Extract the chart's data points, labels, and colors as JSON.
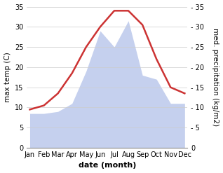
{
  "months": [
    "Jan",
    "Feb",
    "Mar",
    "Apr",
    "May",
    "Jun",
    "Jul",
    "Aug",
    "Sep",
    "Oct",
    "Nov",
    "Dec"
  ],
  "x": [
    0,
    1,
    2,
    3,
    4,
    5,
    6,
    7,
    8,
    9,
    10,
    11
  ],
  "temperature": [
    9.5,
    10.5,
    13.5,
    18.5,
    25.0,
    30.0,
    34.0,
    34.0,
    30.5,
    22.0,
    15.0,
    13.5
  ],
  "precipitation": [
    8.5,
    8.5,
    9.0,
    11.0,
    19.0,
    29.0,
    25.0,
    31.5,
    18.0,
    17.0,
    11.0,
    11.0
  ],
  "temp_color": "#cc3333",
  "precip_fill_color": "#c5d0ee",
  "ylim": [
    0,
    35
  ],
  "yticks": [
    0,
    5,
    10,
    15,
    20,
    25,
    30,
    35
  ],
  "ylabel_left": "max temp (C)",
  "ylabel_right": "med. precipitation (kg/m2)",
  "xlabel": "date (month)",
  "bg_color": "#ffffff",
  "grid_color": "#cccccc",
  "temp_linewidth": 1.8,
  "xlabel_fontsize": 8,
  "ylabel_fontsize": 7.5,
  "tick_fontsize": 7,
  "right_ytick_labels": [
    "0",
    "- 5",
    "- 10",
    "- 15",
    "- 20",
    "- 25",
    "- 30",
    "- 35"
  ]
}
